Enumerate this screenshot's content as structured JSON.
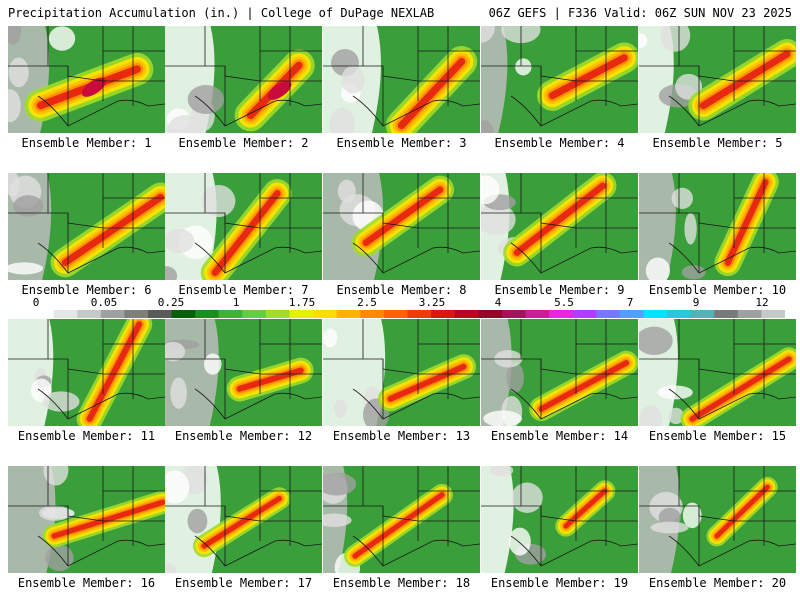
{
  "header": {
    "left": "Precipitation Accumulation (in.) | College of DuPage NEXLAB",
    "right": "06Z GEFS | F336 Valid: 06Z SUN NOV 23 2025"
  },
  "colorbar": {
    "labels": [
      "0",
      "0.05",
      "0.25",
      "1",
      "1.75",
      "2.5",
      "3.25",
      "4",
      "5.5",
      "7",
      "9",
      "12"
    ],
    "colors": [
      "#ffffff",
      "#e6e6e6",
      "#c8c8c8",
      "#a0a0a0",
      "#7e7e7e",
      "#5a5a5a",
      "#0a5f0a",
      "#1e8c1e",
      "#3cb43c",
      "#6acc3c",
      "#a0dc28",
      "#e6f000",
      "#ffdc00",
      "#ffb400",
      "#ff8c00",
      "#ff6400",
      "#f03c00",
      "#dc1414",
      "#b40a1e",
      "#8c0a28",
      "#a0145a",
      "#c81e96",
      "#e628dc",
      "#b43cff",
      "#7878ff",
      "#50a0ff",
      "#00e6ff",
      "#28c8dc",
      "#50b4b4",
      "#7a7a7a",
      "#a0a0a0",
      "#c8c8c8"
    ]
  },
  "ensemble_label_prefix": "Ensemble Member: ",
  "members": [
    {
      "id": 1,
      "caption": "Ensemble Member: 1"
    },
    {
      "id": 2,
      "caption": "Ensemble Member: 2"
    },
    {
      "id": 3,
      "caption": "Ensemble Member: 3"
    },
    {
      "id": 4,
      "caption": "Ensemble Member: 4"
    },
    {
      "id": 5,
      "caption": "Ensemble Member: 5"
    },
    {
      "id": 6,
      "caption": "Ensemble Member: 6"
    },
    {
      "id": 7,
      "caption": "Ensemble Member: 7"
    },
    {
      "id": 8,
      "caption": "Ensemble Member: 8"
    },
    {
      "id": 9,
      "caption": "Ensemble Member: 9"
    },
    {
      "id": 10,
      "caption": "Ensemble Member: 10"
    },
    {
      "id": 11,
      "caption": "Ensemble Member: 11"
    },
    {
      "id": 12,
      "caption": "Ensemble Member: 12"
    },
    {
      "id": 13,
      "caption": "Ensemble Member: 13"
    },
    {
      "id": 14,
      "caption": "Ensemble Member: 14"
    },
    {
      "id": 15,
      "caption": "Ensemble Member: 15"
    },
    {
      "id": 16,
      "caption": "Ensemble Member: 16"
    },
    {
      "id": 17,
      "caption": "Ensemble Member: 17"
    },
    {
      "id": 18,
      "caption": "Ensemble Member: 18"
    },
    {
      "id": 19,
      "caption": "Ensemble Member: 19"
    },
    {
      "id": 20,
      "caption": "Ensemble Member: 20"
    }
  ]
}
